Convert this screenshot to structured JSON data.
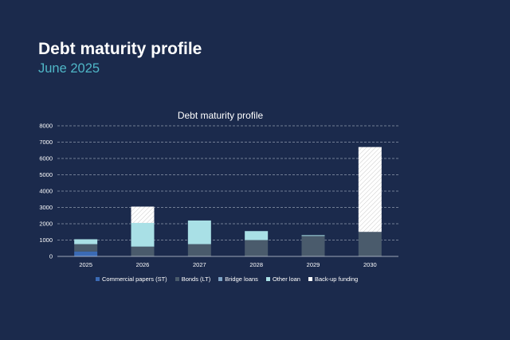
{
  "slide": {
    "title": "Debt maturity profile",
    "subtitle": "June 2025"
  },
  "chart_data": {
    "type": "bar",
    "stacked": true,
    "title": "Debt maturity profile",
    "xlabel": "",
    "ylabel": "",
    "categories": [
      "2025",
      "2026",
      "2027",
      "2028",
      "2029",
      "2030"
    ],
    "ylim": [
      0,
      8000
    ],
    "yticks": [
      0,
      1000,
      2000,
      3000,
      4000,
      5000,
      6000,
      7000,
      8000
    ],
    "grid": true,
    "legend_position": "bottom",
    "series": [
      {
        "name": "Commercial papers (ST)",
        "color": "#3b6bb5",
        "values": [
          300,
          0,
          0,
          0,
          0,
          0
        ]
      },
      {
        "name": "Bonds (LT)",
        "color": "#4a5b6c",
        "values": [
          450,
          600,
          750,
          1000,
          1250,
          1500
        ]
      },
      {
        "name": "Bridge loans",
        "color": "#7fa3c5",
        "values": [
          0,
          0,
          0,
          0,
          0,
          0
        ]
      },
      {
        "name": "Other loan",
        "color": "#a9e0e6",
        "values": [
          300,
          1450,
          1450,
          550,
          50,
          0
        ]
      },
      {
        "name": "Back-up funding",
        "color": "#ffffff",
        "pattern": "hatched",
        "values": [
          0,
          1000,
          0,
          0,
          0,
          5200
        ]
      }
    ]
  }
}
